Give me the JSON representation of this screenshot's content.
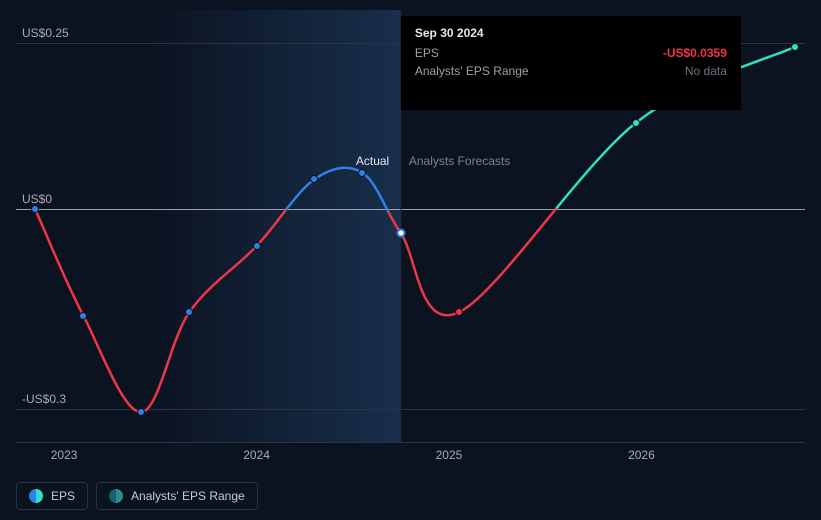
{
  "chart": {
    "type": "line",
    "background_color": "#0b1220",
    "grid_color": "#2a3342",
    "y": {
      "min": -0.35,
      "max": 0.3,
      "ticks": [
        {
          "value": 0.25,
          "label": "US$0.25",
          "line": "solid"
        },
        {
          "value": 0.0,
          "label": "US$0",
          "line": "solid_white"
        },
        {
          "value": -0.3,
          "label": "-US$0.3",
          "line": "solid"
        }
      ]
    },
    "x": {
      "start_year": 2022.75,
      "end_year": 2026.85,
      "ticks": [
        2023,
        2024,
        2025,
        2026
      ]
    },
    "sections": {
      "actual_label": "Actual",
      "forecast_label": "Analysts Forecasts",
      "actual_start_year": 2023.42,
      "split_year": 2024.75
    },
    "series": {
      "eps": {
        "positive_color": "#2f7fe6",
        "forecast_positive_color": "#31e0c1",
        "negative_color": "#ef3648",
        "line_width": 2.5,
        "points": [
          {
            "x": 2022.85,
            "y": 0.0,
            "actual": true
          },
          {
            "x": 2023.1,
            "y": -0.16,
            "actual": true
          },
          {
            "x": 2023.4,
            "y": -0.305,
            "actual": true
          },
          {
            "x": 2023.65,
            "y": -0.155,
            "actual": true
          },
          {
            "x": 2024.0,
            "y": -0.055,
            "actual": true
          },
          {
            "x": 2024.3,
            "y": 0.045,
            "actual": true
          },
          {
            "x": 2024.55,
            "y": 0.055,
            "actual": true
          },
          {
            "x": 2024.75,
            "y": -0.0359,
            "actual": true,
            "current": true
          },
          {
            "x": 2025.05,
            "y": -0.155,
            "actual": false
          },
          {
            "x": 2025.97,
            "y": 0.13,
            "actual": false
          },
          {
            "x": 2026.8,
            "y": 0.245,
            "actual": false,
            "end_marker": true
          }
        ]
      }
    },
    "legend": {
      "items": [
        {
          "key": "eps",
          "label": "EPS",
          "swatch": "eps"
        },
        {
          "key": "range",
          "label": "Analysts' EPS Range",
          "swatch": "range"
        }
      ]
    },
    "tooltip": {
      "date": "Sep 30 2024",
      "rows": [
        {
          "label": "EPS",
          "value": "-US$0.0359",
          "style": "neg"
        },
        {
          "label": "Analysts' EPS Range",
          "value": "No data",
          "style": "nodata"
        }
      ]
    }
  }
}
